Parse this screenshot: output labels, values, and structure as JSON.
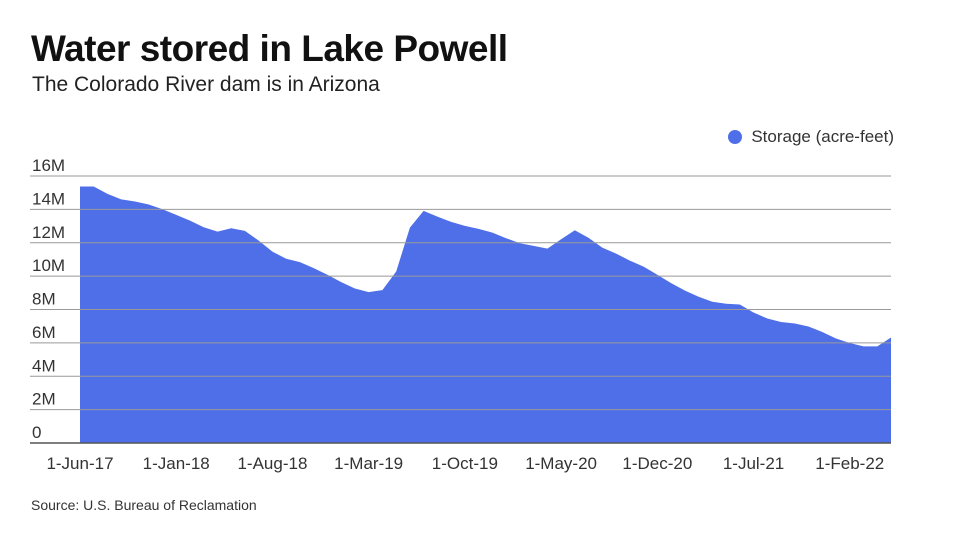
{
  "title": "Water stored in Lake Powell",
  "subtitle": "The Colorado River dam is in Arizona",
  "source": "Source: U.S. Bureau of Reclamation",
  "colors": {
    "fill": "#4f6fe8",
    "grid": "#999999"
  },
  "chart_data": {
    "type": "area",
    "title": "Water stored in Lake Powell",
    "xlabel": "",
    "ylabel": "",
    "legend": {
      "position": "top-right",
      "entries": [
        "Storage (acre-feet)"
      ]
    },
    "ylim": [
      0,
      16000000
    ],
    "yticks": [
      0,
      2000000,
      4000000,
      6000000,
      8000000,
      10000000,
      12000000,
      14000000,
      16000000
    ],
    "ytick_labels": [
      "0",
      "2M",
      "4M",
      "6M",
      "8M",
      "10M",
      "12M",
      "14M",
      "16M"
    ],
    "xtick_labels": [
      "1-Jun-17",
      "1-Jan-18",
      "1-Aug-18",
      "1-Mar-19",
      "1-Oct-19",
      "1-May-20",
      "1-Dec-20",
      "1-Jul-21",
      "1-Feb-22"
    ],
    "xtick_indices": [
      0,
      7,
      14,
      21,
      28,
      35,
      42,
      49,
      56
    ],
    "grid": true,
    "x": [
      "Jun-17",
      "Jul-17",
      "Aug-17",
      "Sep-17",
      "Oct-17",
      "Nov-17",
      "Dec-17",
      "Jan-18",
      "Feb-18",
      "Mar-18",
      "Apr-18",
      "May-18",
      "Jun-18",
      "Jul-18",
      "Aug-18",
      "Sep-18",
      "Oct-18",
      "Nov-18",
      "Dec-18",
      "Jan-19",
      "Feb-19",
      "Mar-19",
      "Apr-19",
      "May-19",
      "Jun-19",
      "Jul-19",
      "Aug-19",
      "Sep-19",
      "Oct-19",
      "Nov-19",
      "Dec-19",
      "Jan-20",
      "Feb-20",
      "Mar-20",
      "Apr-20",
      "May-20",
      "Jun-20",
      "Jul-20",
      "Aug-20",
      "Sep-20",
      "Oct-20",
      "Nov-20",
      "Dec-20",
      "Jan-21",
      "Feb-21",
      "Mar-21",
      "Apr-21",
      "May-21",
      "Jun-21",
      "Jul-21",
      "Aug-21",
      "Sep-21",
      "Oct-21",
      "Nov-21",
      "Dec-21",
      "Jan-22",
      "Feb-22",
      "Mar-22",
      "Apr-22",
      "May-22"
    ],
    "series": [
      {
        "name": "Storage (acre-feet)",
        "values": [
          15370000,
          15370000,
          14930000,
          14600000,
          14470000,
          14290000,
          14010000,
          13670000,
          13330000,
          12930000,
          12670000,
          12870000,
          12710000,
          12130000,
          11470000,
          11040000,
          10840000,
          10480000,
          10080000,
          9640000,
          9260000,
          9040000,
          9160000,
          10280000,
          12910000,
          13910000,
          13570000,
          13250000,
          13010000,
          12830000,
          12610000,
          12270000,
          11970000,
          11810000,
          11650000,
          12210000,
          12750000,
          12290000,
          11710000,
          11350000,
          10930000,
          10570000,
          10080000,
          9580000,
          9140000,
          8760000,
          8460000,
          8340000,
          8300000,
          7820000,
          7460000,
          7250000,
          7160000,
          6980000,
          6650000,
          6260000,
          5990000,
          5790000,
          5790000,
          6320000
        ]
      }
    ]
  }
}
